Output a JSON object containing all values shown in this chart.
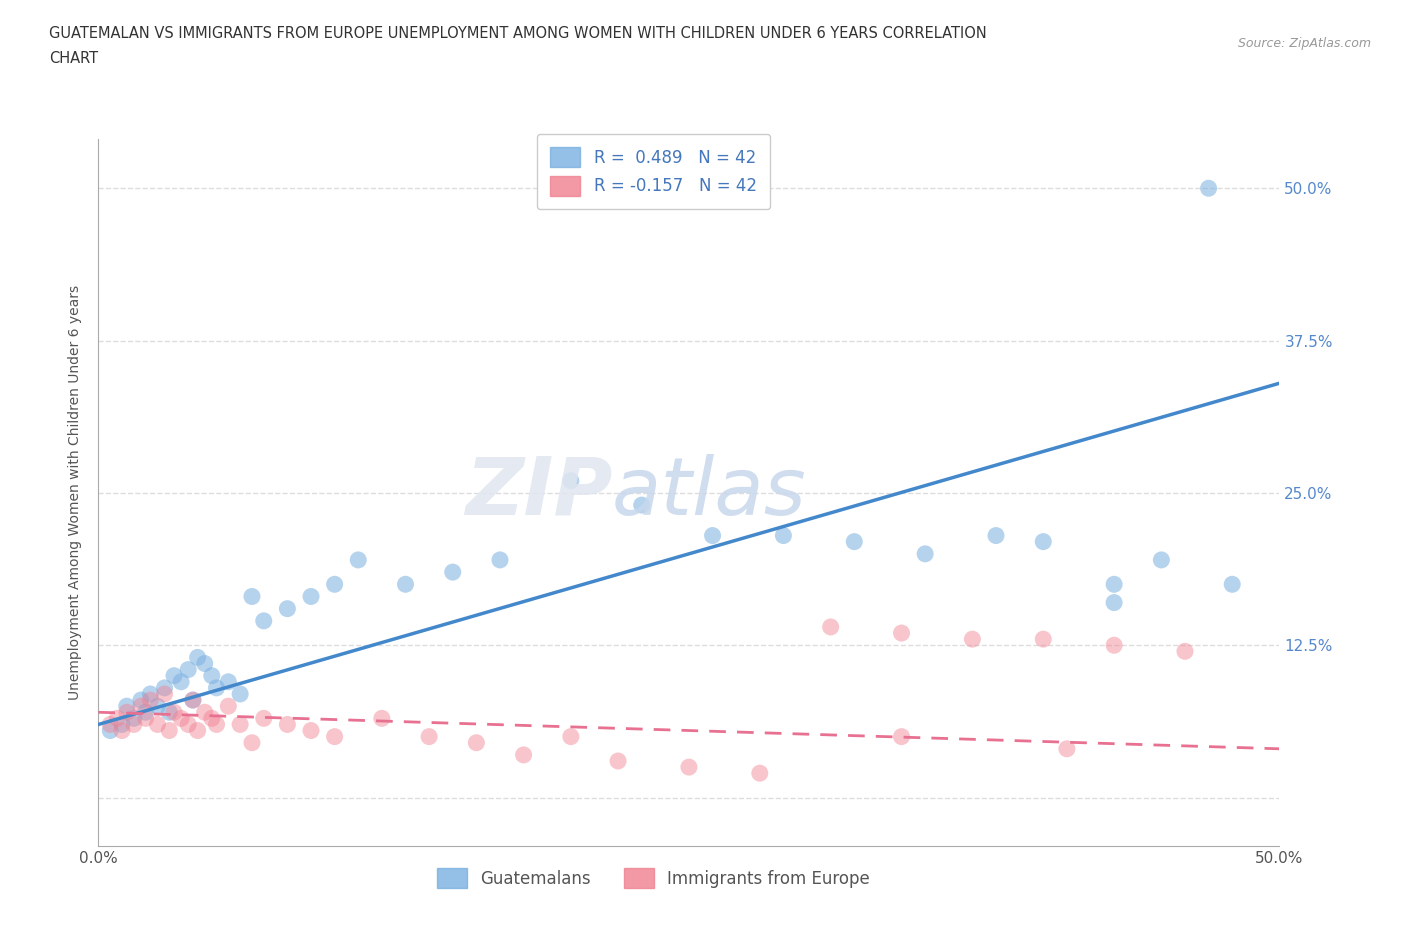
{
  "title_line1": "GUATEMALAN VS IMMIGRANTS FROM EUROPE UNEMPLOYMENT AMONG WOMEN WITH CHILDREN UNDER 6 YEARS CORRELATION",
  "title_line2": "CHART",
  "source_text": "Source: ZipAtlas.com",
  "ylabel": "Unemployment Among Women with Children Under 6 years",
  "xlim": [
    0.0,
    0.5
  ],
  "ylim": [
    -0.04,
    0.54
  ],
  "legend_entries": [
    {
      "label": "R =  0.489   N = 42",
      "color": "#a8c8f0"
    },
    {
      "label": "R = -0.157   N = 42",
      "color": "#f8a8b8"
    }
  ],
  "legend_bottom_labels": [
    "Guatemalans",
    "Immigrants from Europe"
  ],
  "guatemalan_color": "#7ab0e0",
  "europe_color": "#f08090",
  "trend_guatemalan_color": "#4488cc",
  "trend_europe_color": "#e87090",
  "background_color": "#ffffff",
  "grid_color": "#dddddd",
  "guatemalan_x": [
    0.005,
    0.01,
    0.012,
    0.015,
    0.018,
    0.02,
    0.022,
    0.025,
    0.028,
    0.03,
    0.032,
    0.035,
    0.038,
    0.04,
    0.042,
    0.045,
    0.048,
    0.05,
    0.055,
    0.06,
    0.065,
    0.07,
    0.08,
    0.09,
    0.1,
    0.11,
    0.13,
    0.15,
    0.17,
    0.2,
    0.23,
    0.26,
    0.29,
    0.32,
    0.35,
    0.38,
    0.4,
    0.43,
    0.45,
    0.47,
    0.43,
    0.48
  ],
  "guatemalan_y": [
    0.055,
    0.06,
    0.075,
    0.065,
    0.08,
    0.07,
    0.085,
    0.075,
    0.09,
    0.07,
    0.1,
    0.095,
    0.105,
    0.08,
    0.115,
    0.11,
    0.1,
    0.09,
    0.095,
    0.085,
    0.165,
    0.145,
    0.155,
    0.165,
    0.175,
    0.195,
    0.175,
    0.185,
    0.195,
    0.26,
    0.24,
    0.215,
    0.215,
    0.21,
    0.2,
    0.215,
    0.21,
    0.175,
    0.195,
    0.5,
    0.16,
    0.175
  ],
  "europe_x": [
    0.005,
    0.008,
    0.01,
    0.012,
    0.015,
    0.018,
    0.02,
    0.022,
    0.025,
    0.028,
    0.03,
    0.032,
    0.035,
    0.038,
    0.04,
    0.042,
    0.045,
    0.048,
    0.05,
    0.055,
    0.06,
    0.065,
    0.07,
    0.08,
    0.09,
    0.1,
    0.12,
    0.14,
    0.16,
    0.18,
    0.2,
    0.22,
    0.25,
    0.28,
    0.31,
    0.34,
    0.37,
    0.4,
    0.43,
    0.46,
    0.34,
    0.41
  ],
  "europe_y": [
    0.06,
    0.065,
    0.055,
    0.07,
    0.06,
    0.075,
    0.065,
    0.08,
    0.06,
    0.085,
    0.055,
    0.07,
    0.065,
    0.06,
    0.08,
    0.055,
    0.07,
    0.065,
    0.06,
    0.075,
    0.06,
    0.045,
    0.065,
    0.06,
    0.055,
    0.05,
    0.065,
    0.05,
    0.045,
    0.035,
    0.05,
    0.03,
    0.025,
    0.02,
    0.14,
    0.135,
    0.13,
    0.13,
    0.125,
    0.12,
    0.05,
    0.04
  ],
  "trend_g_intercept": 0.06,
  "trend_g_slope": 0.56,
  "trend_e_intercept": 0.07,
  "trend_e_slope": -0.06
}
